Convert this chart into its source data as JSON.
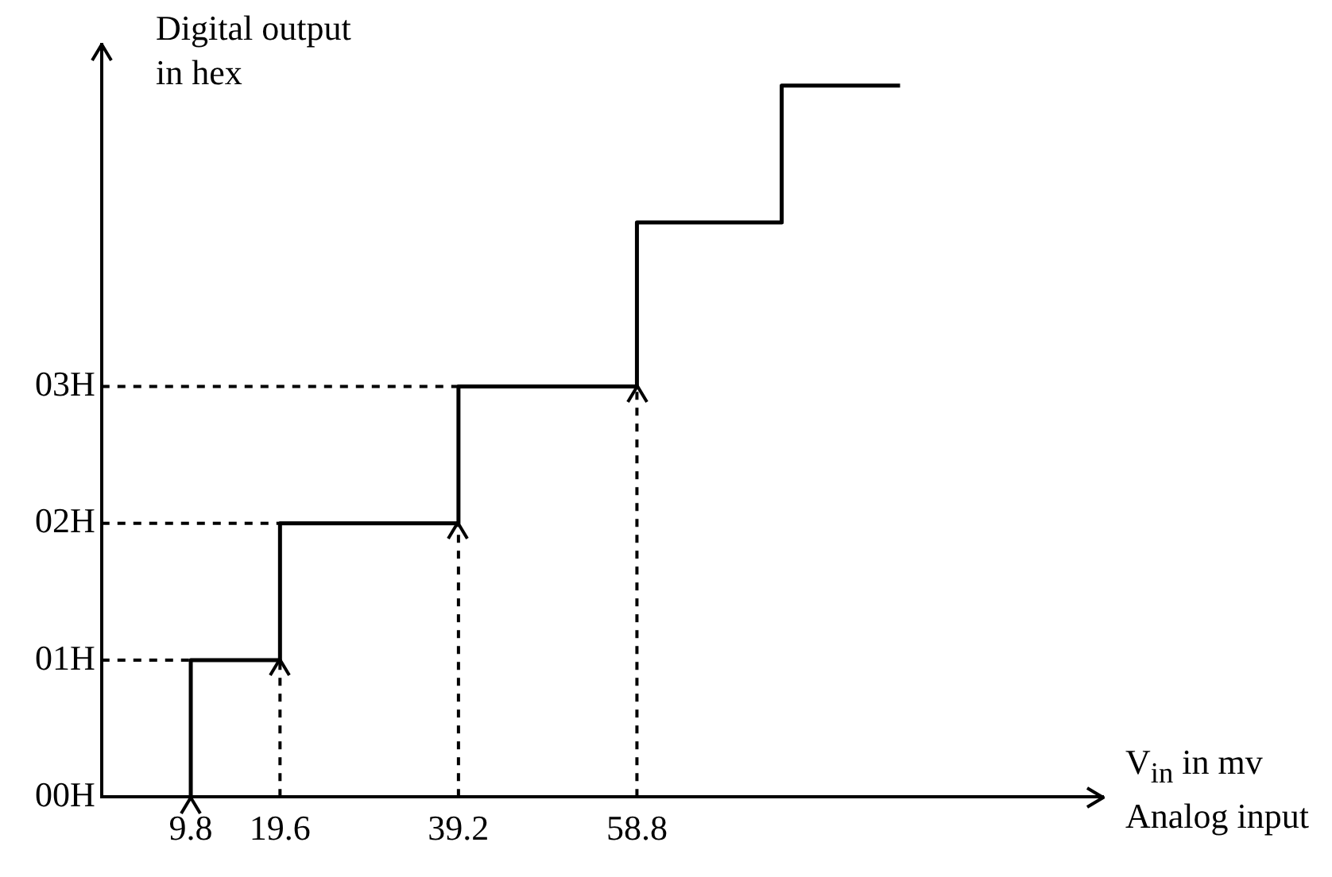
{
  "chart_data": {
    "type": "step",
    "xlabel": "V$_{in}$ in mv Analog input",
    "ylabel": "Digital output in hex",
    "xlim": [
      0,
      110
    ],
    "xticks": [
      9.8,
      19.6,
      39.2,
      58.8
    ],
    "ylim": [
      0,
      5.5
    ],
    "yticks": [
      {
        "value": 0,
        "label": "00H"
      },
      {
        "value": 1,
        "label": "01H"
      },
      {
        "value": 2,
        "label": "02H"
      },
      {
        "value": 3,
        "label": "03H"
      }
    ],
    "series": [
      {
        "color": "#000000",
        "x": [
          9.8,
          9.8,
          19.6,
          39.2,
          58.8,
          74.7,
          87.7
        ],
        "values": [
          0,
          1,
          2,
          3,
          4.2,
          5.2,
          5.2
        ]
      }
    ],
    "ref_lines": [
      {
        "axis": "y",
        "value": 1,
        "line_style": "dashed",
        "color": "#000000"
      },
      {
        "axis": "y",
        "value": 2,
        "line_style": "dashed",
        "color": "#000000"
      },
      {
        "axis": "y",
        "value": 3,
        "line_style": "dashed",
        "color": "#000000"
      },
      {
        "axis": "x",
        "value": 19.6,
        "line_style": "dashed",
        "color": "#000000"
      },
      {
        "axis": "x",
        "value": 39.2,
        "line_style": "dashed",
        "color": "#000000"
      },
      {
        "axis": "x",
        "value": 58.8,
        "line_style": "dashed",
        "color": "#000000"
      }
    ]
  }
}
